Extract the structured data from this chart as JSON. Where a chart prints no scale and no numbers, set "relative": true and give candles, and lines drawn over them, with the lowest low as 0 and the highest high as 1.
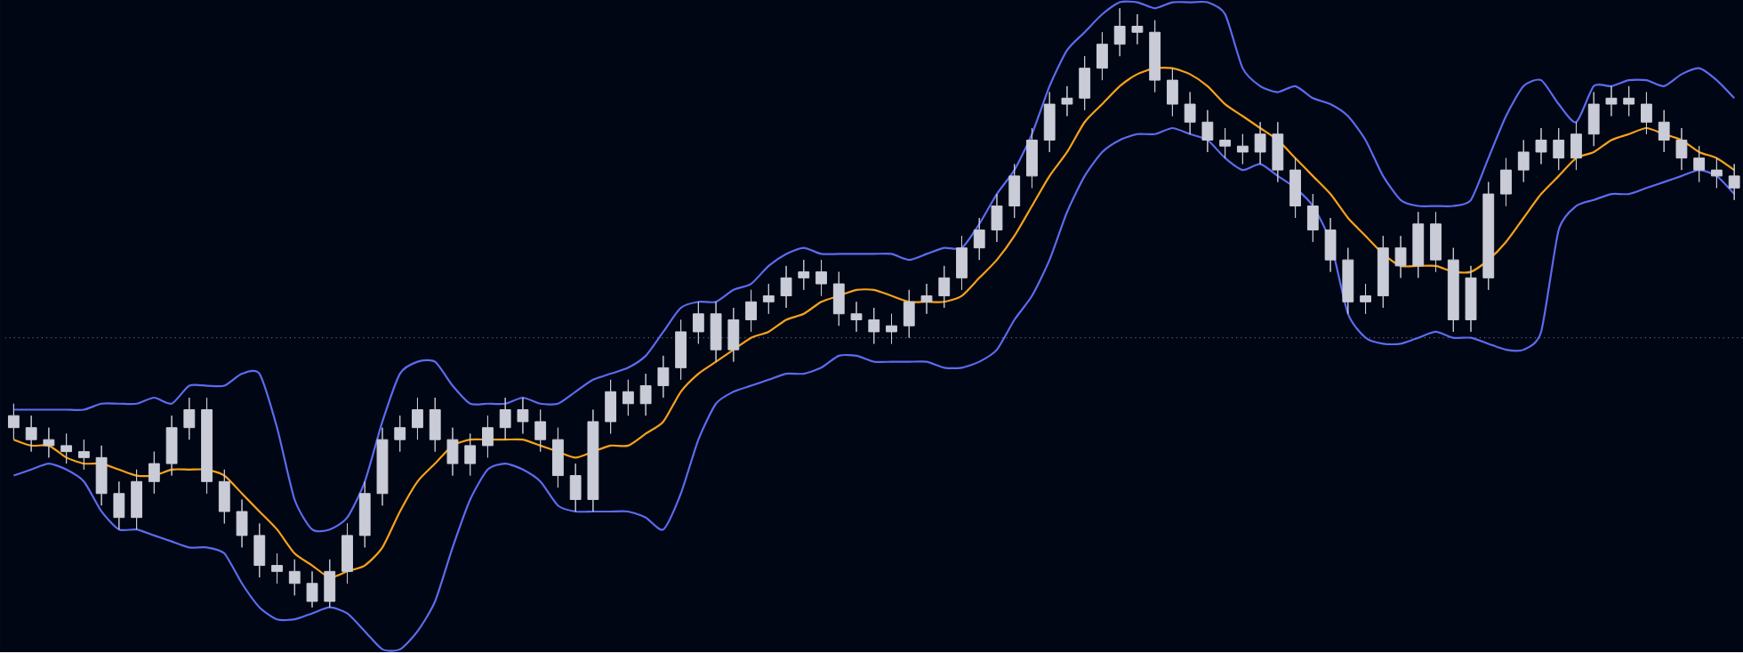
{
  "chart_data": {
    "type": "candlestick",
    "relative": true,
    "categories": [
      null,
      null,
      null,
      null,
      null,
      null,
      null,
      null,
      null,
      null,
      null,
      null,
      null,
      null,
      null,
      null,
      null,
      null,
      null,
      null,
      null,
      null,
      null,
      null,
      null,
      null,
      null,
      null,
      null,
      null,
      null,
      null,
      null,
      null,
      null,
      null,
      null,
      null,
      null,
      null,
      null,
      null,
      null,
      null,
      null,
      null,
      null,
      null,
      null,
      null,
      null,
      null,
      null,
      null,
      null,
      null,
      null,
      null,
      null,
      null,
      null,
      null,
      null,
      null,
      null,
      null,
      null,
      null,
      null,
      null,
      null,
      null,
      null,
      null,
      null,
      null,
      null,
      null,
      null,
      null,
      null,
      null,
      null,
      null,
      null,
      null,
      null,
      null,
      null,
      null,
      null,
      null,
      null,
      null,
      null,
      null,
      null,
      null,
      null
    ],
    "series": [
      {
        "type": "candlestick",
        "color": "#c9ccd6",
        "ohlc": [
          [
            0.32,
            0.34,
            0.28,
            0.3
          ],
          [
            0.3,
            0.32,
            0.26,
            0.28
          ],
          [
            0.28,
            0.3,
            0.25,
            0.27
          ],
          [
            0.27,
            0.29,
            0.24,
            0.26
          ],
          [
            0.26,
            0.28,
            0.23,
            0.25
          ],
          [
            0.25,
            0.27,
            0.17,
            0.19
          ],
          [
            0.19,
            0.21,
            0.13,
            0.15
          ],
          [
            0.15,
            0.23,
            0.13,
            0.21
          ],
          [
            0.21,
            0.26,
            0.19,
            0.24
          ],
          [
            0.24,
            0.32,
            0.22,
            0.3
          ],
          [
            0.3,
            0.35,
            0.28,
            0.33
          ],
          [
            0.33,
            0.35,
            0.19,
            0.21
          ],
          [
            0.21,
            0.23,
            0.14,
            0.16
          ],
          [
            0.16,
            0.18,
            0.1,
            0.12
          ],
          [
            0.12,
            0.14,
            0.05,
            0.07
          ],
          [
            0.07,
            0.09,
            0.04,
            0.06
          ],
          [
            0.06,
            0.08,
            0.02,
            0.04
          ],
          [
            0.04,
            0.06,
            0,
            0.01
          ],
          [
            0.01,
            0.08,
            0,
            0.06
          ],
          [
            0.06,
            0.14,
            0.04,
            0.12
          ],
          [
            0.12,
            0.21,
            0.1,
            0.19
          ],
          [
            0.19,
            0.3,
            0.17,
            0.28
          ],
          [
            0.28,
            0.32,
            0.26,
            0.3
          ],
          [
            0.3,
            0.35,
            0.28,
            0.33
          ],
          [
            0.33,
            0.35,
            0.26,
            0.28
          ],
          [
            0.28,
            0.3,
            0.22,
            0.24
          ],
          [
            0.24,
            0.29,
            0.22,
            0.27
          ],
          [
            0.27,
            0.32,
            0.25,
            0.3
          ],
          [
            0.3,
            0.35,
            0.28,
            0.33
          ],
          [
            0.33,
            0.35,
            0.29,
            0.31
          ],
          [
            0.31,
            0.33,
            0.26,
            0.28
          ],
          [
            0.28,
            0.3,
            0.2,
            0.22
          ],
          [
            0.22,
            0.24,
            0.16,
            0.18
          ],
          [
            0.18,
            0.33,
            0.16,
            0.31
          ],
          [
            0.31,
            0.38,
            0.29,
            0.36
          ],
          [
            0.36,
            0.38,
            0.32,
            0.34
          ],
          [
            0.34,
            0.39,
            0.32,
            0.37
          ],
          [
            0.37,
            0.42,
            0.35,
            0.4
          ],
          [
            0.4,
            0.48,
            0.38,
            0.46
          ],
          [
            0.46,
            0.51,
            0.44,
            0.49
          ],
          [
            0.49,
            0.51,
            0.41,
            0.43
          ],
          [
            0.43,
            0.5,
            0.41,
            0.48
          ],
          [
            0.48,
            0.53,
            0.46,
            0.51
          ],
          [
            0.51,
            0.54,
            0.49,
            0.52
          ],
          [
            0.52,
            0.57,
            0.5,
            0.55
          ],
          [
            0.55,
            0.58,
            0.53,
            0.56
          ],
          [
            0.56,
            0.58,
            0.52,
            0.54
          ],
          [
            0.54,
            0.56,
            0.47,
            0.49
          ],
          [
            0.49,
            0.51,
            0.46,
            0.48
          ],
          [
            0.48,
            0.5,
            0.44,
            0.46
          ],
          [
            0.46,
            0.49,
            0.44,
            0.47
          ],
          [
            0.47,
            0.53,
            0.45,
            0.51
          ],
          [
            0.51,
            0.54,
            0.49,
            0.52
          ],
          [
            0.52,
            0.57,
            0.5,
            0.55
          ],
          [
            0.55,
            0.62,
            0.53,
            0.6
          ],
          [
            0.6,
            0.65,
            0.58,
            0.63
          ],
          [
            0.63,
            0.69,
            0.61,
            0.67
          ],
          [
            0.67,
            0.74,
            0.65,
            0.72
          ],
          [
            0.72,
            0.8,
            0.7,
            0.78
          ],
          [
            0.78,
            0.86,
            0.76,
            0.84
          ],
          [
            0.84,
            0.87,
            0.82,
            0.85
          ],
          [
            0.85,
            0.92,
            0.83,
            0.9
          ],
          [
            0.9,
            0.96,
            0.88,
            0.94
          ],
          [
            0.94,
            1,
            0.92,
            0.97
          ],
          [
            0.97,
            0.99,
            0.94,
            0.96
          ],
          [
            0.96,
            0.98,
            0.86,
            0.88
          ],
          [
            0.88,
            0.9,
            0.82,
            0.84
          ],
          [
            0.84,
            0.86,
            0.79,
            0.81
          ],
          [
            0.81,
            0.83,
            0.76,
            0.78
          ],
          [
            0.78,
            0.8,
            0.75,
            0.77
          ],
          [
            0.77,
            0.79,
            0.74,
            0.76
          ],
          [
            0.76,
            0.81,
            0.74,
            0.79
          ],
          [
            0.79,
            0.81,
            0.71,
            0.73
          ],
          [
            0.73,
            0.75,
            0.65,
            0.67
          ],
          [
            0.67,
            0.69,
            0.61,
            0.63
          ],
          [
            0.63,
            0.65,
            0.56,
            0.58
          ],
          [
            0.58,
            0.6,
            0.49,
            0.51
          ],
          [
            0.51,
            0.54,
            0.49,
            0.52
          ],
          [
            0.52,
            0.62,
            0.5,
            0.6
          ],
          [
            0.6,
            0.62,
            0.55,
            0.57
          ],
          [
            0.57,
            0.66,
            0.55,
            0.64
          ],
          [
            0.64,
            0.66,
            0.56,
            0.58
          ],
          [
            0.58,
            0.6,
            0.46,
            0.48
          ],
          [
            0.48,
            0.57,
            0.46,
            0.55
          ],
          [
            0.55,
            0.71,
            0.53,
            0.69
          ],
          [
            0.69,
            0.75,
            0.67,
            0.73
          ],
          [
            0.73,
            0.78,
            0.71,
            0.76
          ],
          [
            0.76,
            0.8,
            0.74,
            0.78
          ],
          [
            0.78,
            0.8,
            0.73,
            0.75
          ],
          [
            0.75,
            0.81,
            0.73,
            0.79
          ],
          [
            0.79,
            0.86,
            0.77,
            0.84
          ],
          [
            0.84,
            0.87,
            0.82,
            0.85
          ],
          [
            0.85,
            0.87,
            0.82,
            0.84
          ],
          [
            0.84,
            0.86,
            0.79,
            0.81
          ],
          [
            0.81,
            0.83,
            0.76,
            0.78
          ],
          [
            0.78,
            0.8,
            0.73,
            0.75
          ],
          [
            0.75,
            0.77,
            0.71,
            0.73
          ],
          [
            0.73,
            0.75,
            0.7,
            0.72
          ],
          [
            0.72,
            0.74,
            0.68,
            0.7
          ]
        ]
      },
      {
        "type": "line",
        "color": "#5b6cf0",
        "values": [
          0.33,
          0.33,
          0.33,
          0.33,
          0.33,
          0.34,
          0.34,
          0.34,
          0.35,
          0.34,
          0.37,
          0.37,
          0.37,
          0.39,
          0.39,
          0.3,
          0.18,
          0.13,
          0.13,
          0.15,
          0.21,
          0.31,
          0.39,
          0.41,
          0.41,
          0.37,
          0.34,
          0.34,
          0.34,
          0.35,
          0.34,
          0.34,
          0.36,
          0.38,
          0.39,
          0.4,
          0.42,
          0.46,
          0.5,
          0.51,
          0.51,
          0.53,
          0.54,
          0.57,
          0.59,
          0.6,
          0.59,
          0.59,
          0.59,
          0.59,
          0.59,
          0.58,
          0.59,
          0.6,
          0.6,
          0.64,
          0.69,
          0.73,
          0.79,
          0.87,
          0.93,
          0.96,
          0.99,
          1.01,
          1.01,
          1.0,
          1.01,
          1.01,
          1.01,
          0.99,
          0.9,
          0.87,
          0.86,
          0.87,
          0.85,
          0.84,
          0.82,
          0.78,
          0.72,
          0.68,
          0.67,
          0.67,
          0.67,
          0.68,
          0.75,
          0.82,
          0.87,
          0.88,
          0.84,
          0.81,
          0.87,
          0.87,
          0.88,
          0.88,
          0.87,
          0.89,
          0.9,
          0.88,
          0.85
        ]
      },
      {
        "type": "line",
        "color": "#5b6cf0",
        "values": [
          0.22,
          0.23,
          0.24,
          0.23,
          0.21,
          0.16,
          0.13,
          0.13,
          0.12,
          0.11,
          0.1,
          0.1,
          0.09,
          0.04,
          0.0,
          -0.02,
          -0.02,
          -0.01,
          0.0,
          -0.01,
          -0.04,
          -0.07,
          -0.07,
          -0.04,
          0.01,
          0.1,
          0.18,
          0.23,
          0.24,
          0.23,
          0.21,
          0.17,
          0.16,
          0.16,
          0.16,
          0.16,
          0.15,
          0.13,
          0.19,
          0.28,
          0.34,
          0.36,
          0.37,
          0.38,
          0.39,
          0.39,
          0.4,
          0.42,
          0.42,
          0.41,
          0.41,
          0.41,
          0.41,
          0.4,
          0.4,
          0.41,
          0.43,
          0.48,
          0.52,
          0.58,
          0.66,
          0.72,
          0.76,
          0.78,
          0.79,
          0.79,
          0.8,
          0.79,
          0.78,
          0.75,
          0.73,
          0.74,
          0.72,
          0.7,
          0.67,
          0.61,
          0.49,
          0.45,
          0.44,
          0.44,
          0.45,
          0.46,
          0.45,
          0.45,
          0.44,
          0.43,
          0.43,
          0.46,
          0.63,
          0.67,
          0.68,
          0.69,
          0.69,
          0.7,
          0.71,
          0.72,
          0.73,
          0.72,
          0.69
        ]
      },
      {
        "type": "line",
        "color": "#f7a21b",
        "values": [
          0.28,
          0.27,
          0.27,
          0.25,
          0.24,
          0.24,
          0.23,
          0.22,
          0.22,
          0.23,
          0.23,
          0.23,
          0.22,
          0.19,
          0.16,
          0.13,
          0.09,
          0.07,
          0.05,
          0.06,
          0.07,
          0.1,
          0.16,
          0.21,
          0.24,
          0.27,
          0.28,
          0.28,
          0.28,
          0.28,
          0.27,
          0.26,
          0.25,
          0.26,
          0.27,
          0.27,
          0.29,
          0.31,
          0.36,
          0.39,
          0.41,
          0.43,
          0.45,
          0.46,
          0.48,
          0.49,
          0.51,
          0.52,
          0.53,
          0.53,
          0.52,
          0.51,
          0.51,
          0.51,
          0.52,
          0.55,
          0.58,
          0.62,
          0.67,
          0.72,
          0.76,
          0.81,
          0.84,
          0.87,
          0.89,
          0.9,
          0.9,
          0.89,
          0.87,
          0.84,
          0.82,
          0.8,
          0.78,
          0.75,
          0.72,
          0.69,
          0.65,
          0.62,
          0.59,
          0.57,
          0.57,
          0.57,
          0.56,
          0.56,
          0.58,
          0.61,
          0.65,
          0.69,
          0.72,
          0.75,
          0.76,
          0.78,
          0.79,
          0.8,
          0.79,
          0.78,
          0.76,
          0.75,
          0.73
        ]
      }
    ],
    "ref_lines": [
      {
        "axis": "y",
        "value": 0.45,
        "line_style": "dotted",
        "color": "#5d6272"
      }
    ]
  }
}
